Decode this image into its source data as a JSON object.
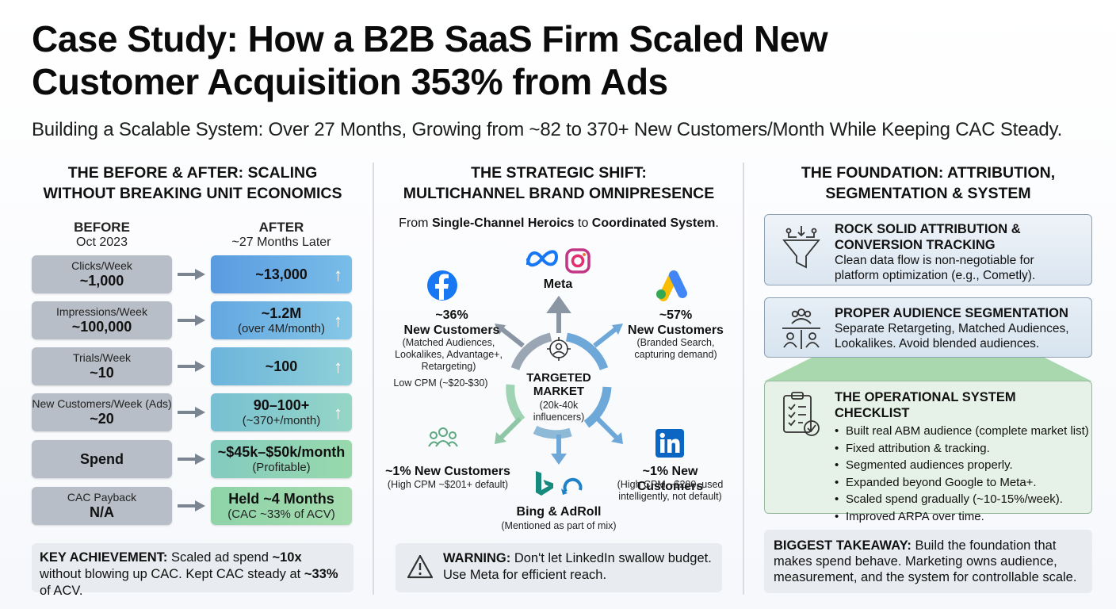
{
  "title_line1": "Case Study: How a B2B SaaS Firm Scaled New",
  "title_line2": "Customer Acquisition 353% from Ads",
  "subtitle": "Building a Scalable System: Over 27 Months, Growing from ~82 to 370+ New Customers/Month While Keeping CAC Steady.",
  "left": {
    "head_line1": "THE BEFORE & AFTER: SCALING",
    "head_line2": "WITHOUT BREAKING UNIT ECONOMICS",
    "before_label": "BEFORE",
    "before_date": "Oct 2023",
    "after_label": "AFTER",
    "after_date": "~27 Months Later",
    "rows": [
      {
        "label": "Clicks/Week",
        "before": "~1,000",
        "after": "~13,000",
        "after_sub": ""
      },
      {
        "label": "Impressions/Week",
        "before": "~100,000",
        "after": "~1.2M",
        "after_sub": "(over 4M/month)"
      },
      {
        "label": "Trials/Week",
        "before": "~10",
        "after": "~100",
        "after_sub": ""
      },
      {
        "label": "New Customers/Week (Ads)",
        "before": "~20",
        "after": "90–100+",
        "after_sub": "(~370+/month)"
      },
      {
        "label": "",
        "before": "Spend",
        "after": "~$45k–$50k/month",
        "after_sub": "(Profitable)"
      },
      {
        "label": "CAC Payback",
        "before": "N/A",
        "after": "Held ~4 Months",
        "after_sub": "(CAC ~33% of ACV)"
      }
    ],
    "key_bold": "KEY ACHIEVEMENT:",
    "key_text1": " Scaled ad spend ",
    "key_b2": "~10x",
    "key_text2": " without blowing up CAC. Kept CAC steady at ",
    "key_b3": "~33%",
    "key_text3": " of ACV."
  },
  "middle": {
    "head_line1": "THE STRATEGIC SHIFT:",
    "head_line2": "MULTICHANNEL BRAND OMNIPRESENCE",
    "sub_pre": "From ",
    "sub_b1": "Single-Channel Heroics",
    "sub_mid": " to ",
    "sub_b2": "Coordinated System",
    "sub_post": ".",
    "center_line1": "TARGETED",
    "center_line2": "MARKET",
    "center_sub1": "(20k-40k",
    "center_sub2": "influencers)",
    "meta_label": "Meta",
    "fb_pct": "~36%",
    "fb_title": "New Customers",
    "fb_sub1": "(Matched Audiences,",
    "fb_sub2": "Lookalikes, Advantage+,",
    "fb_sub3": "Retargeting)",
    "fb_cpm": "Low CPM (~$20-$30)",
    "g_pct": "~57%",
    "g_title": "New Customers",
    "g_sub1": "(Branded Search,",
    "g_sub2": "capturing demand)",
    "other_title": "~1% New Customers",
    "other_sub": "(High CPM ~$201+ default)",
    "li_title": "~1% New Customers",
    "li_sub1": "(High CPM ~$200, used",
    "li_sub2": "intelligently, not default)",
    "bing_title": "Bing & AdRoll",
    "bing_sub": "(Mentioned as part of mix)",
    "warn_bold": "WARNING:",
    "warn_text1": " Don't let LinkedIn swallow budget.",
    "warn_text2": "Use Meta for efficient reach."
  },
  "right": {
    "head_line1": "THE FOUNDATION: ATTRIBUTION,",
    "head_line2": "SEGMENTATION & SYSTEM",
    "p1_title1": "ROCK SOLID ATTRIBUTION &",
    "p1_title2": "CONVERSION TRACKING",
    "p1_text1": "Clean data flow is non-negotiable for",
    "p1_text2": "platform optimization (e.g., Cometly).",
    "p2_title": "PROPER AUDIENCE SEGMENTATION",
    "p2_text1": "Separate Retargeting, Matched Audiences,",
    "p2_text2": "Lookalikes. Avoid blended audiences.",
    "p3_title": "THE OPERATIONAL SYSTEM CHECKLIST",
    "checklist": [
      "Built real ABM audience (complete market list)",
      "Fixed attribution & tracking.",
      "Segmented audiences properly.",
      "Expanded beyond Google to Meta+.",
      "Scaled spend gradually (~10-15%/week).",
      "Improved ARPA over time."
    ],
    "take_bold": "BIGGEST TAKEAWAY:",
    "take_text": " Build the foundation that makes spend behave. Marketing owns audience, measurement, and the system for controllable scale."
  },
  "colors": {
    "before": "#b8bec7",
    "after_blue": "#5a9fe0",
    "after_green": "#8fd1a1",
    "accent_panel": "#dfe8f2",
    "green_panel": "#e6f2e8"
  }
}
